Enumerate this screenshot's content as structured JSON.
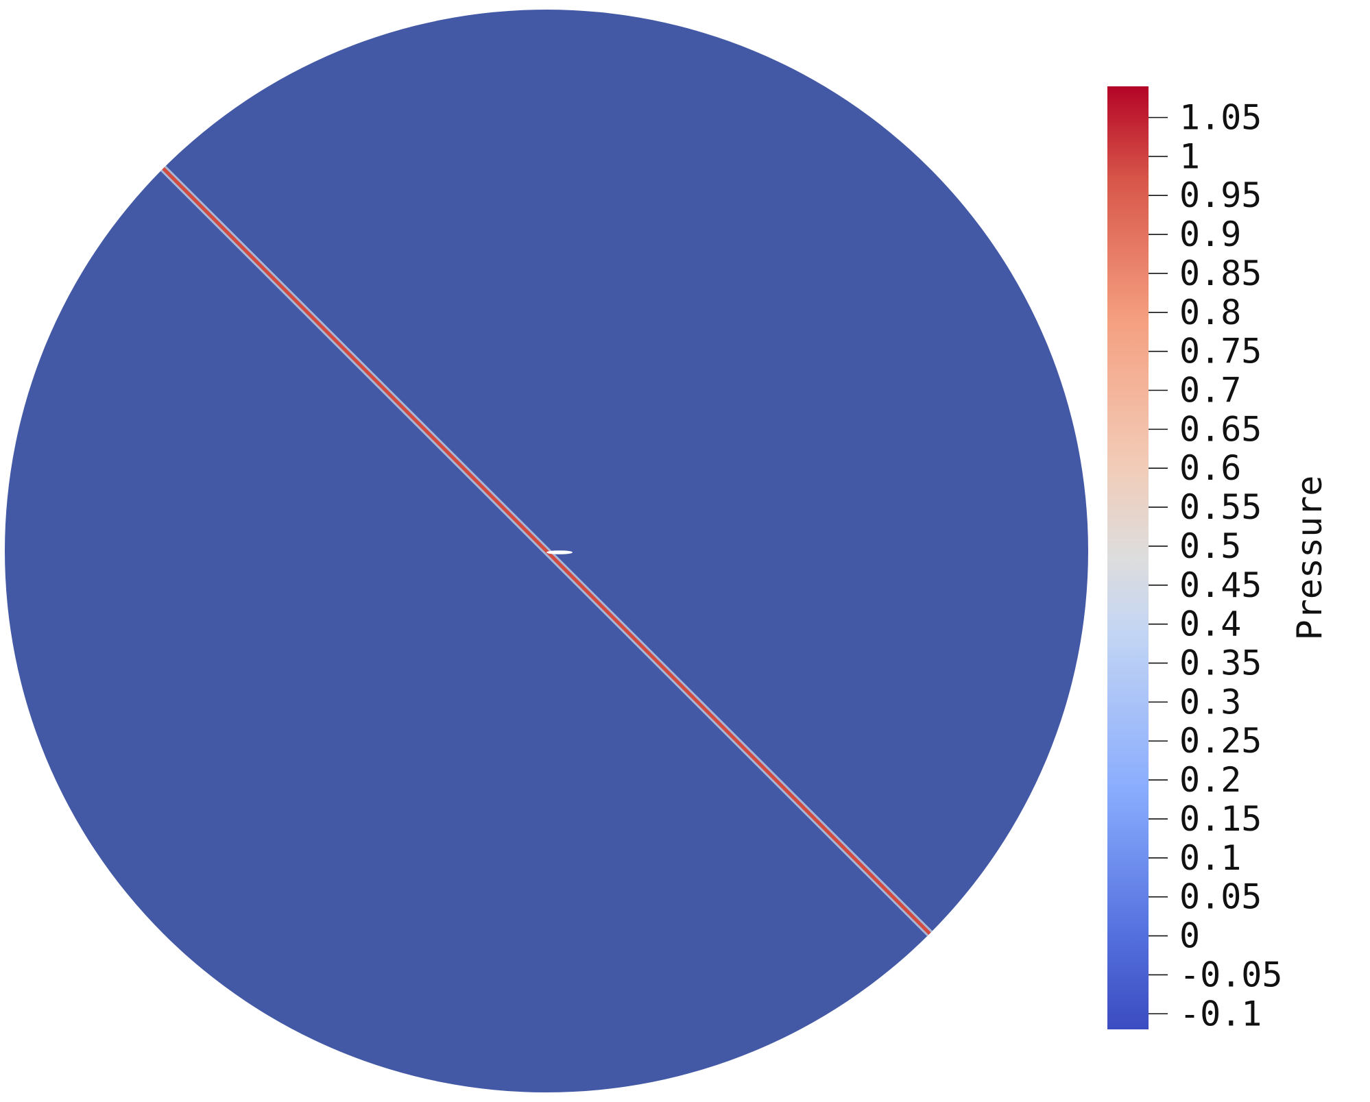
{
  "chart_data": {
    "type": "heatmap",
    "title": "",
    "field": "Pressure",
    "domain_shape": "disk",
    "background_value": 0.0,
    "feature": {
      "kind": "thin diagonal pressure band through the disk center",
      "peak_value": 1.0,
      "orientation": "upper-left to lower-right"
    },
    "colorbar": {
      "title": "Pressure",
      "colormap": "coolwarm",
      "range": [
        -0.12,
        1.09
      ],
      "ticks": [
        1.05,
        1,
        0.95,
        0.9,
        0.85,
        0.8,
        0.75,
        0.7,
        0.65,
        0.6,
        0.55,
        0.5,
        0.45,
        0.4,
        0.35,
        0.3,
        0.25,
        0.2,
        0.15,
        0.1,
        0.05,
        0,
        -0.05,
        -0.1
      ],
      "tick_labels": [
        "1.05",
        "1",
        "0.95",
        "0.9",
        "0.85",
        "0.8",
        "0.75",
        "0.7",
        "0.65",
        "0.6",
        "0.55",
        "0.5",
        "0.45",
        "0.4",
        "0.35",
        "0.3",
        "0.25",
        "0.2",
        "0.15",
        "0.1",
        "0.05",
        "0",
        "-0.05",
        "-0.1"
      ],
      "placement": "right"
    },
    "colors": {
      "low": "#3b4cc0",
      "mid": "#dddddd",
      "high": "#b40426",
      "disk_fill": "#4459a6",
      "band": "#d24b40"
    }
  }
}
